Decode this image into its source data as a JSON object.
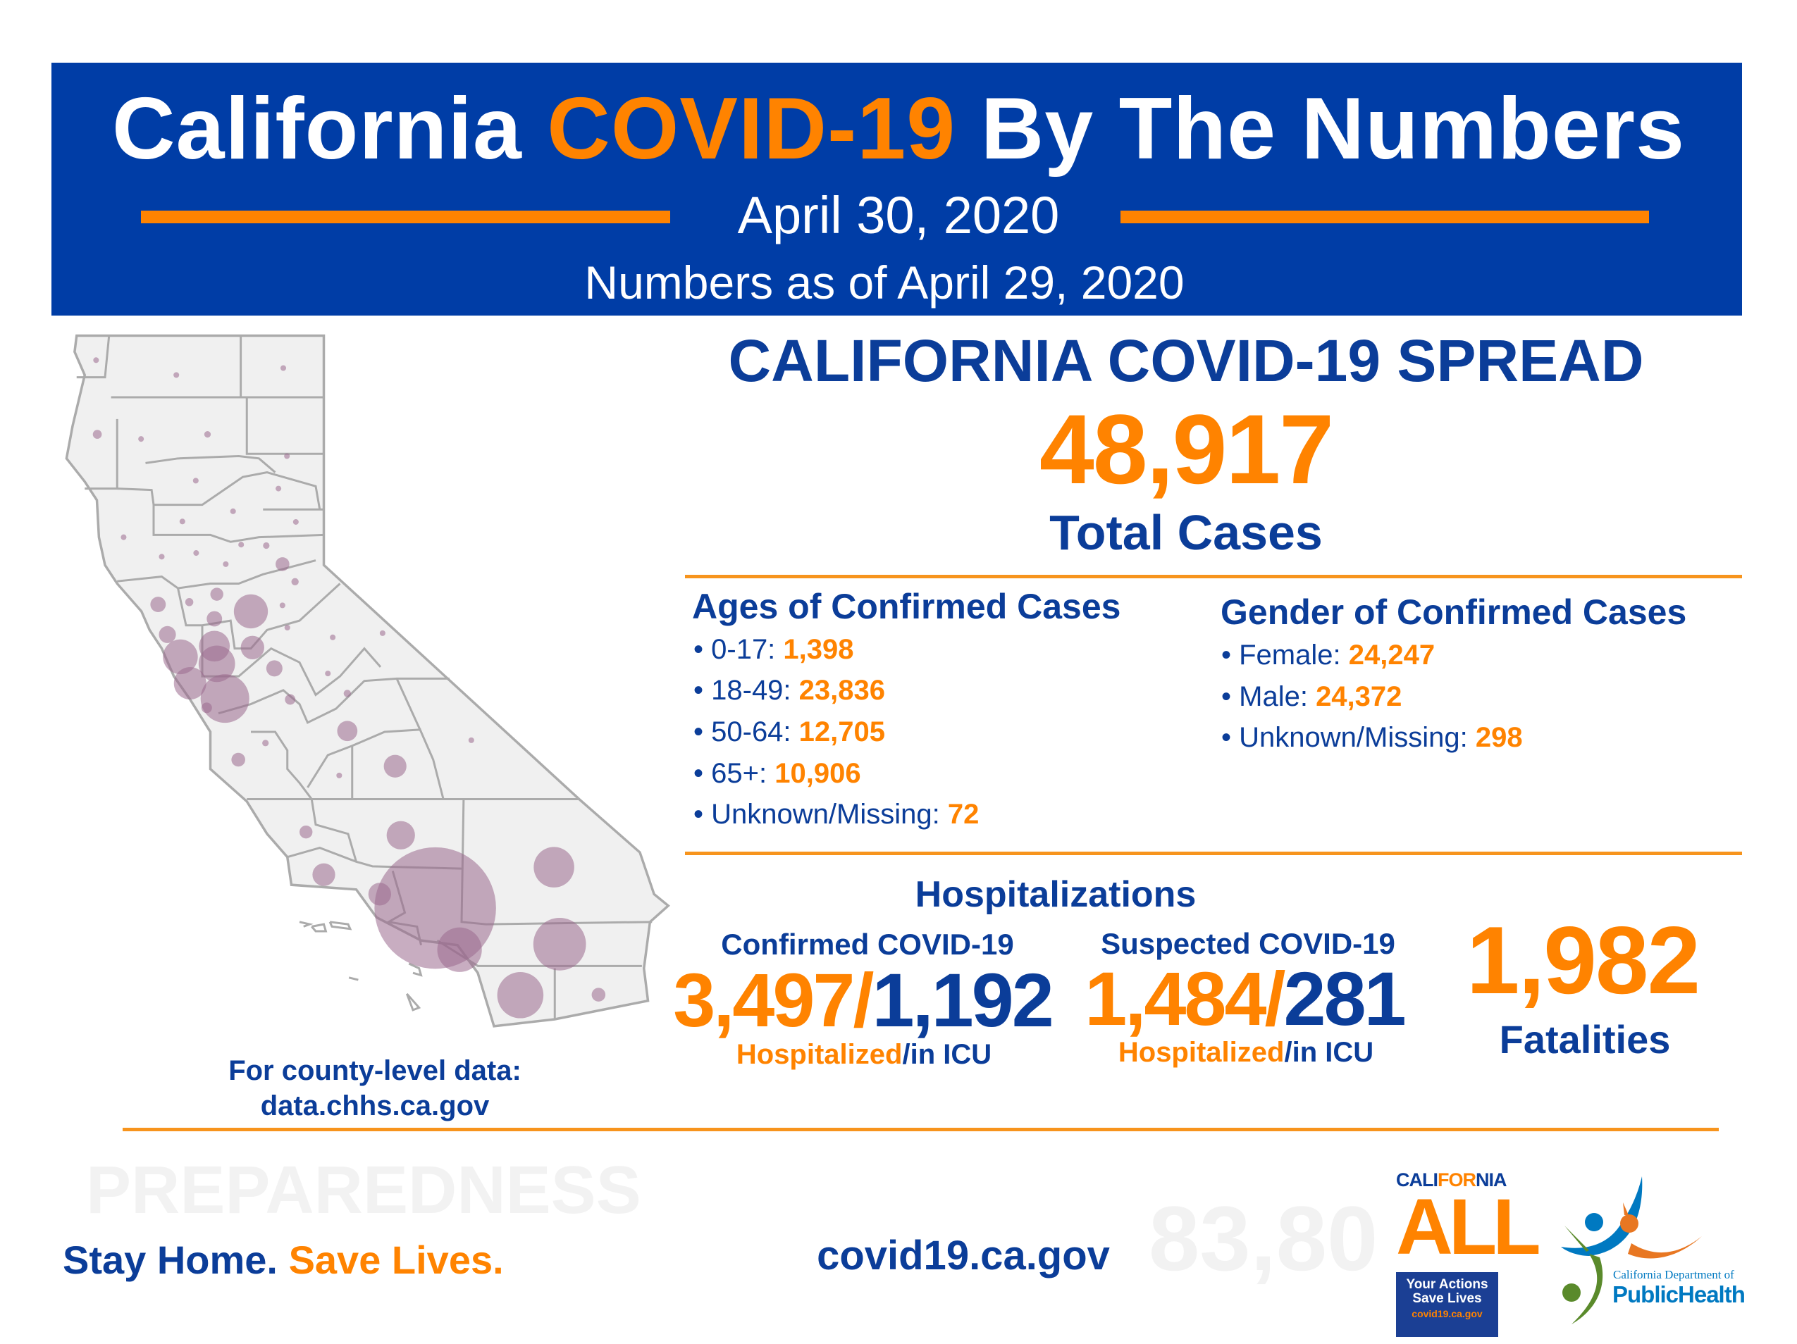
{
  "header": {
    "title_part1": "California",
    "title_highlight": "COVID-19",
    "title_part2": "By The Numbers",
    "date": "April 30, 2020",
    "as_of": "Numbers as of April 29, 2020"
  },
  "spread": {
    "heading": "CALIFORNIA COVID-19 SPREAD",
    "total": "48,917",
    "total_label": "Total Cases"
  },
  "ages": {
    "heading": "Ages of Confirmed Cases",
    "items": [
      {
        "label": "0-17:",
        "value": "1,398"
      },
      {
        "label": "18-49:",
        "value": "23,836"
      },
      {
        "label": "50-64:",
        "value": "12,705"
      },
      {
        "label": "65+:",
        "value": "10,906"
      },
      {
        "label": "Unknown/Missing:",
        "value": "72"
      }
    ]
  },
  "gender": {
    "heading": "Gender of Confirmed Cases",
    "items": [
      {
        "label": "Female:",
        "value": "24,247"
      },
      {
        "label": "Male:",
        "value": "24,372"
      },
      {
        "label": "Unknown/Missing:",
        "value": "298"
      }
    ]
  },
  "hospitalizations": {
    "heading": "Hospitalizations",
    "separator": "/",
    "hosp_label": "Hospitalized",
    "icu_label": "/in ICU",
    "confirmed": {
      "label": "Confirmed COVID-19",
      "hospitalized": "3,497",
      "icu": "1,192"
    },
    "suspected": {
      "label": "Suspected COVID-19",
      "hospitalized": "1,484",
      "icu": "281"
    }
  },
  "fatalities": {
    "value": "1,982",
    "label": "Fatalities"
  },
  "map": {
    "note": "For county-level data:",
    "link": "data.chhs.ca.gov"
  },
  "footer": {
    "slogan_part1": "Stay Home.",
    "slogan_part2": "Save Lives.",
    "website": "covid19.ca.gov",
    "watermark": [
      "PREPAREDNESS",
      "83,80"
    ]
  },
  "logos": {
    "california_all": {
      "cali": "CALI",
      "for": "FOR",
      "nia": "NIA",
      "all": "ALL",
      "line1": "Your Actions",
      "line2": "Save Lives",
      "url": "covid19.ca.gov"
    },
    "cdph": {
      "line1": "California Department of",
      "line2": "PublicHealth"
    }
  },
  "colors": {
    "navy": "#003DA6",
    "orange": "#FF8300",
    "bubble": "#9B6A8E",
    "map_fill": "#F0F0F0"
  }
}
